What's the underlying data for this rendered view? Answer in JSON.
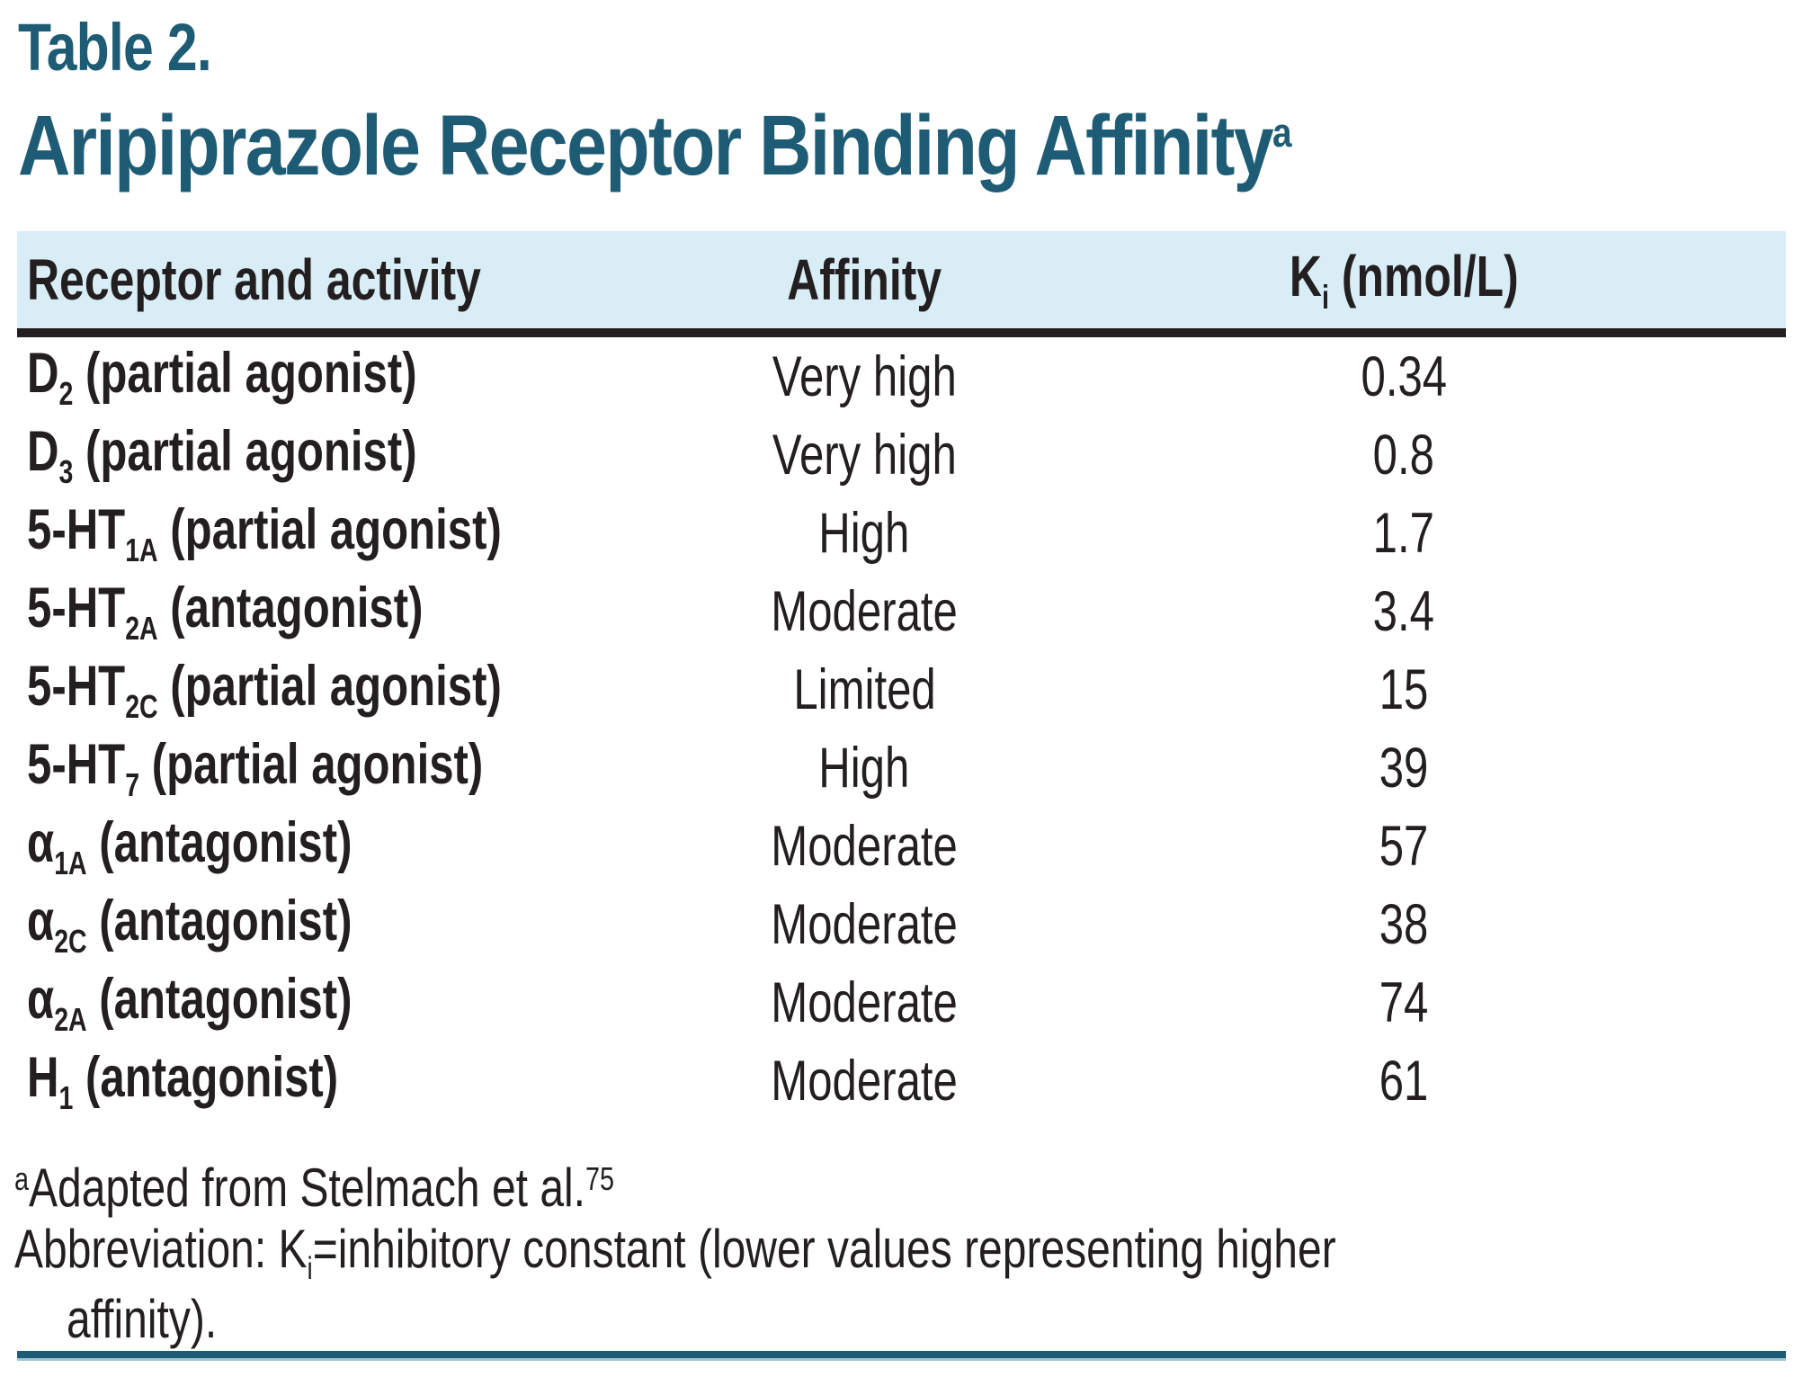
{
  "page": {
    "label": "Table 2.",
    "title": "Aripiprazole Receptor Binding Affinity",
    "title_sup": "a"
  },
  "table": {
    "header": {
      "col1": "Receptor and activity",
      "col2": "Affinity",
      "col3_base": "K",
      "col3_sub": "i",
      "col3_rest": " (nmol/L)"
    },
    "rows": [
      {
        "receptor_base": "D",
        "receptor_sub": "2",
        "receptor_activity": " (partial agonist)",
        "affinity": "Very high",
        "ki": "0.34"
      },
      {
        "receptor_base": "D",
        "receptor_sub": "3",
        "receptor_activity": " (partial agonist)",
        "affinity": "Very high",
        "ki": "0.8"
      },
      {
        "receptor_base": "5-HT",
        "receptor_sub": "1A",
        "receptor_activity": " (partial agonist)",
        "affinity": "High",
        "ki": "1.7"
      },
      {
        "receptor_base": "5-HT",
        "receptor_sub": "2A",
        "receptor_activity": " (antagonist)",
        "affinity": "Moderate",
        "ki": "3.4"
      },
      {
        "receptor_base": "5-HT",
        "receptor_sub": "2C",
        "receptor_activity": " (partial agonist)",
        "affinity": "Limited",
        "ki": "15"
      },
      {
        "receptor_base": "5-HT",
        "receptor_sub": "7",
        "receptor_activity": " (partial agonist)",
        "affinity": "High",
        "ki": "39"
      },
      {
        "receptor_base": "α",
        "receptor_sub": "1A",
        "receptor_activity": " (antagonist)",
        "affinity": "Moderate",
        "ki": "57"
      },
      {
        "receptor_base": "α",
        "receptor_sub": "2C",
        "receptor_activity": " (antagonist)",
        "affinity": "Moderate",
        "ki": "38"
      },
      {
        "receptor_base": "α",
        "receptor_sub": "2A",
        "receptor_activity": " (antagonist)",
        "affinity": "Moderate",
        "ki": "74"
      },
      {
        "receptor_base": "H",
        "receptor_sub": "1",
        "receptor_activity": " (antagonist)",
        "affinity": "Moderate",
        "ki": "61"
      }
    ]
  },
  "footnotes": {
    "f1_sup": "a",
    "f1_text": "Adapted from Stelmach et al.",
    "f1_ref": "75",
    "f2_prefix": "Abbreviation: K",
    "f2_sub": "i",
    "f2_rest": "=inhibitory constant (lower values representing higher",
    "f2_line2": "affinity)."
  },
  "colors": {
    "accent_teal": "#1e5b74",
    "header_bg": "#d8edf5",
    "text": "#231f20"
  }
}
